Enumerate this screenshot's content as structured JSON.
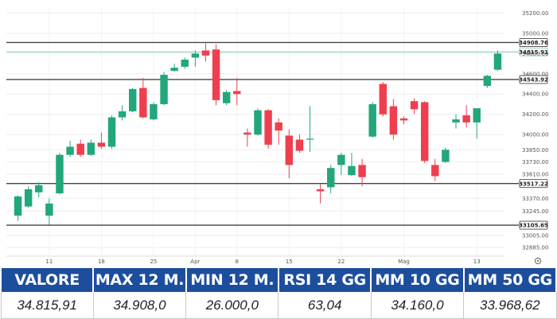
{
  "chart_data": {
    "type": "candlestick",
    "y_ticks": [
      "35200.00",
      "35000.00",
      "34800.00",
      "34600.00",
      "34400.00",
      "34200.00",
      "34000.00",
      "33850.00",
      "33730.00",
      "33610.00",
      "33370.00",
      "33245.00",
      "33005.00",
      "32885.00"
    ],
    "ylim": [
      32800,
      35250
    ],
    "x_ticks": [
      {
        "label": "11",
        "index": 3
      },
      {
        "label": "18",
        "index": 8
      },
      {
        "label": "25",
        "index": 13
      },
      {
        "label": "Apr",
        "index": 17
      },
      {
        "label": "8",
        "index": 21
      },
      {
        "label": "15",
        "index": 26
      },
      {
        "label": "22",
        "index": 31
      },
      {
        "label": "Mag",
        "index": 37
      },
      {
        "label": "13",
        "index": 44
      }
    ],
    "horizontal_levels": [
      {
        "value": 34908.76,
        "label": "34908.76",
        "color": "#444444"
      },
      {
        "value": 34815.91,
        "label": "34815.91",
        "color": "#7fc4b8"
      },
      {
        "value": 34543.92,
        "label": "34543.92",
        "color": "#444444"
      },
      {
        "value": 33517.22,
        "label": "33517.22",
        "color": "#444444"
      },
      {
        "value": 33105.65,
        "label": "33105.65",
        "color": "#444444"
      }
    ],
    "candles": [
      {
        "o": 33200,
        "h": 33400,
        "l": 33150,
        "c": 33390
      },
      {
        "o": 33290,
        "h": 33490,
        "l": 33280,
        "c": 33460
      },
      {
        "o": 33430,
        "h": 33530,
        "l": 33380,
        "c": 33500
      },
      {
        "o": 33200,
        "h": 33370,
        "l": 33110,
        "c": 33320
      },
      {
        "o": 33420,
        "h": 33820,
        "l": 33410,
        "c": 33800
      },
      {
        "o": 33800,
        "h": 33940,
        "l": 33780,
        "c": 33880
      },
      {
        "o": 33910,
        "h": 33950,
        "l": 33780,
        "c": 33800
      },
      {
        "o": 33800,
        "h": 33950,
        "l": 33790,
        "c": 33920
      },
      {
        "o": 33920,
        "h": 34020,
        "l": 33860,
        "c": 33880
      },
      {
        "o": 33880,
        "h": 34190,
        "l": 33860,
        "c": 34170
      },
      {
        "o": 34170,
        "h": 34290,
        "l": 34140,
        "c": 34230
      },
      {
        "o": 34230,
        "h": 34460,
        "l": 34220,
        "c": 34450
      },
      {
        "o": 34460,
        "h": 34560,
        "l": 34160,
        "c": 34170
      },
      {
        "o": 34150,
        "h": 34320,
        "l": 34140,
        "c": 34300
      },
      {
        "o": 34300,
        "h": 34620,
        "l": 34290,
        "c": 34590
      },
      {
        "o": 34630,
        "h": 34700,
        "l": 34620,
        "c": 34660
      },
      {
        "o": 34670,
        "h": 34760,
        "l": 34650,
        "c": 34740
      },
      {
        "o": 34760,
        "h": 34830,
        "l": 34670,
        "c": 34800
      },
      {
        "o": 34830,
        "h": 34900,
        "l": 34720,
        "c": 34780
      },
      {
        "o": 34840,
        "h": 34890,
        "l": 34290,
        "c": 34340
      },
      {
        "o": 34310,
        "h": 34440,
        "l": 34290,
        "c": 34420
      },
      {
        "o": 34430,
        "h": 34560,
        "l": 34290,
        "c": 34400
      },
      {
        "o": 34020,
        "h": 34060,
        "l": 33880,
        "c": 34000
      },
      {
        "o": 34000,
        "h": 34260,
        "l": 33990,
        "c": 34240
      },
      {
        "o": 34240,
        "h": 34250,
        "l": 33860,
        "c": 33900
      },
      {
        "o": 34120,
        "h": 34160,
        "l": 33900,
        "c": 34040
      },
      {
        "o": 33990,
        "h": 34050,
        "l": 33570,
        "c": 33700
      },
      {
        "o": 33950,
        "h": 34000,
        "l": 33820,
        "c": 33840
      },
      {
        "o": 33950,
        "h": 34280,
        "l": 33830,
        "c": 33960
      },
      {
        "o": 33460,
        "h": 33510,
        "l": 33320,
        "c": 33440
      },
      {
        "o": 33480,
        "h": 33700,
        "l": 33420,
        "c": 33670
      },
      {
        "o": 33700,
        "h": 33820,
        "l": 33600,
        "c": 33800
      },
      {
        "o": 33600,
        "h": 33820,
        "l": 33590,
        "c": 33690
      },
      {
        "o": 33700,
        "h": 33760,
        "l": 33490,
        "c": 33580
      },
      {
        "o": 33980,
        "h": 34320,
        "l": 33970,
        "c": 34300
      },
      {
        "o": 34500,
        "h": 34520,
        "l": 34180,
        "c": 34200
      },
      {
        "o": 34280,
        "h": 34350,
        "l": 33950,
        "c": 34000
      },
      {
        "o": 34160,
        "h": 34180,
        "l": 34100,
        "c": 34140
      },
      {
        "o": 34330,
        "h": 34360,
        "l": 34200,
        "c": 34250
      },
      {
        "o": 34320,
        "h": 34330,
        "l": 33720,
        "c": 33740
      },
      {
        "o": 33700,
        "h": 33760,
        "l": 33540,
        "c": 33590
      },
      {
        "o": 33730,
        "h": 33870,
        "l": 33720,
        "c": 33850
      },
      {
        "o": 34120,
        "h": 34200,
        "l": 34060,
        "c": 34150
      },
      {
        "o": 34190,
        "h": 34290,
        "l": 34070,
        "c": 34120
      },
      {
        "o": 34120,
        "h": 34260,
        "l": 33960,
        "c": 34260
      },
      {
        "o": 34480,
        "h": 34590,
        "l": 34460,
        "c": 34580
      },
      {
        "o": 34640,
        "h": 34830,
        "l": 34630,
        "c": 34800
      }
    ],
    "colors": {
      "up": "#22a77a",
      "down": "#ef3e4e"
    },
    "grid": true
  },
  "stats_table": {
    "headers": [
      "VALORE",
      "MAX 12 M.",
      "MIN 12 M.",
      "RSI 14 GG",
      "MM 10 GG",
      "MM 50 GG"
    ],
    "values": [
      "34.815,91",
      "34.908,0",
      "26.000,0",
      "63,04",
      "34.160,0",
      "33.968,62"
    ]
  },
  "colors": {
    "header_bg": "#1d4e9e",
    "header_text": "#ffffff"
  },
  "icons": {
    "settings": "gear-icon"
  }
}
